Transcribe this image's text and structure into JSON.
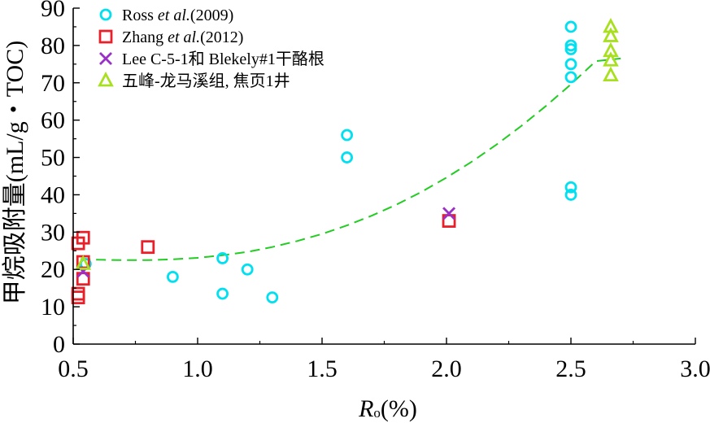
{
  "chart_data": {
    "type": "scatter",
    "xlabel_main": "R",
    "xlabel_sub": "o",
    "xlabel_unit": "(%)",
    "ylabel": "甲烷吸附量(mL/g・TOC)",
    "xlim": [
      0.5,
      3.0
    ],
    "ylim": [
      0,
      90
    ],
    "xticks": [
      "0.5",
      "1.0",
      "1.5",
      "2.0",
      "2.5",
      "3.0"
    ],
    "yticks": [
      "0",
      "10",
      "20",
      "30",
      "40",
      "50",
      "60",
      "70",
      "80",
      "90"
    ],
    "grid": false,
    "legend_position": "top-left",
    "series": [
      {
        "name_parts": [
          "Ross ",
          "et al.",
          "(2009)"
        ],
        "marker": "circle",
        "color": "#00e0f0",
        "points": [
          [
            0.55,
            21.5
          ],
          [
            0.9,
            18
          ],
          [
            1.1,
            23
          ],
          [
            1.1,
            13.5
          ],
          [
            1.2,
            20
          ],
          [
            1.3,
            12.5
          ],
          [
            1.6,
            56
          ],
          [
            1.6,
            50
          ],
          [
            2.5,
            85
          ],
          [
            2.5,
            80
          ],
          [
            2.5,
            79
          ],
          [
            2.5,
            75
          ],
          [
            2.5,
            71.5
          ],
          [
            2.5,
            42
          ],
          [
            2.5,
            40
          ]
        ]
      },
      {
        "name_parts": [
          "Zhang ",
          "et al.",
          "(2012)"
        ],
        "marker": "square",
        "color": "#e8202a",
        "points": [
          [
            0.52,
            27
          ],
          [
            0.54,
            28.5
          ],
          [
            0.54,
            22
          ],
          [
            0.54,
            17.5
          ],
          [
            0.52,
            13.5
          ],
          [
            0.52,
            12.5
          ],
          [
            0.8,
            26
          ],
          [
            2.01,
            33
          ]
        ]
      },
      {
        "name_parts": [
          "Lee C-5-1和 Blekely#1干酪根"
        ],
        "marker": "x",
        "color": "#9b30c8",
        "points": [
          [
            0.54,
            19.5
          ],
          [
            2.01,
            35
          ]
        ]
      },
      {
        "name_parts": [
          "五峰-龙马溪组, 焦页1井"
        ],
        "marker": "triangle",
        "color": "#a8e020",
        "points": [
          [
            0.54,
            21.5
          ],
          [
            2.66,
            85
          ],
          [
            2.66,
            82.5
          ],
          [
            2.66,
            78.5
          ],
          [
            2.66,
            76
          ],
          [
            2.66,
            72
          ]
        ]
      }
    ],
    "trendline": {
      "style": "dashed",
      "color": "#22cc22",
      "points": [
        [
          0.53,
          22.8
        ],
        [
          0.6,
          22.6
        ],
        [
          0.7,
          22.5
        ],
        [
          0.8,
          22.5
        ],
        [
          0.9,
          22.7
        ],
        [
          1.0,
          23.1
        ],
        [
          1.1,
          23.8
        ],
        [
          1.2,
          24.7
        ],
        [
          1.3,
          26.0
        ],
        [
          1.4,
          27.6
        ],
        [
          1.5,
          29.5
        ],
        [
          1.6,
          31.8
        ],
        [
          1.7,
          34.4
        ],
        [
          1.8,
          37.4
        ],
        [
          1.9,
          40.8
        ],
        [
          2.0,
          44.6
        ],
        [
          2.1,
          48.8
        ],
        [
          2.2,
          53.4
        ],
        [
          2.3,
          58.4
        ],
        [
          2.4,
          63.8
        ],
        [
          2.5,
          69.6
        ],
        [
          2.6,
          75.8
        ],
        [
          2.7,
          76.5
        ]
      ]
    }
  }
}
